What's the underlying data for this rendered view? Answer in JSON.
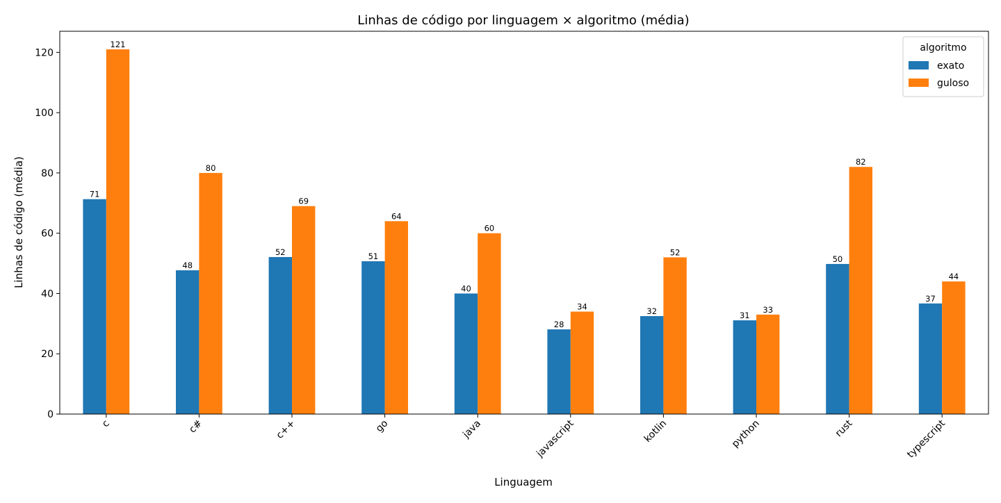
{
  "chart_data": {
    "type": "bar",
    "title": "Linhas de código por linguagem × algoritmo (média)",
    "xlabel": "Linguagem",
    "ylabel": "Linhas de código (média)",
    "categories": [
      "c",
      "c#",
      "c++",
      "go",
      "java",
      "javascript",
      "kotlin",
      "python",
      "rust",
      "typescript"
    ],
    "ylim": [
      0,
      127
    ],
    "yticks": [
      0,
      20,
      40,
      60,
      80,
      100,
      120
    ],
    "grid": false,
    "legend": {
      "title": "algoritmo",
      "position": "top-right"
    },
    "series": [
      {
        "name": "exato",
        "color": "#1f77b4",
        "values": [
          71.3,
          47.7,
          52.1,
          50.7,
          40.0,
          28.1,
          32.5,
          31.1,
          49.8,
          36.7
        ],
        "labels": [
          "71",
          "48",
          "52",
          "51",
          "40",
          "28",
          "32",
          "31",
          "50",
          "37"
        ]
      },
      {
        "name": "guloso",
        "color": "#ff7f0e",
        "values": [
          121.0,
          80.0,
          69.0,
          64.0,
          60.0,
          34.0,
          52.0,
          33.0,
          82.0,
          44.0
        ],
        "labels": [
          "121",
          "80",
          "69",
          "64",
          "60",
          "34",
          "52",
          "33",
          "82",
          "44"
        ]
      }
    ]
  }
}
